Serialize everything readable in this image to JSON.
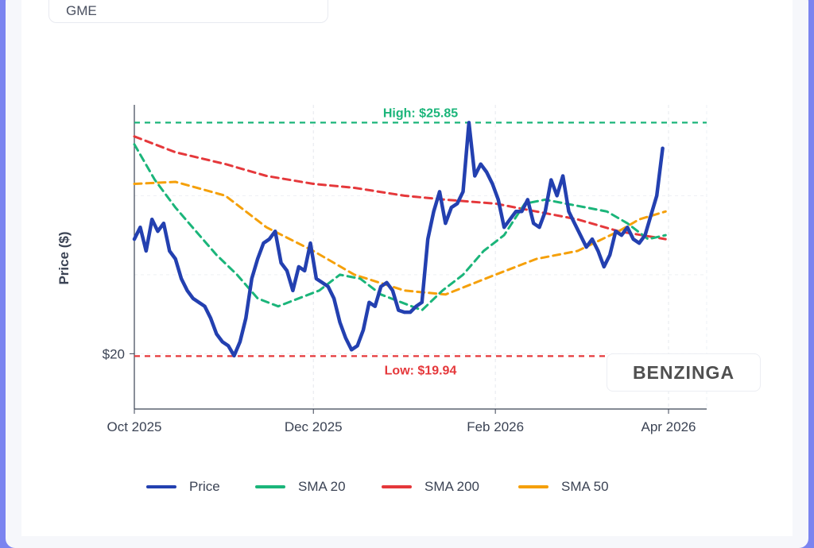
{
  "ticker": "GME",
  "logo_text": "BENZINGA",
  "colors": {
    "price": "#2340b0",
    "sma20": "#1bb57a",
    "sma200": "#e5383b",
    "sma50": "#f5a00a",
    "high": "#1bb57a",
    "low": "#e5383b"
  },
  "chart_data": {
    "type": "line",
    "title": "",
    "xlabel": "",
    "ylabel": "Price ($)",
    "x_ticks": [
      "Oct 2025",
      "Dec 2025",
      "Feb 2026",
      "Apr 2026"
    ],
    "y_ticks": [
      "$20"
    ],
    "ylim": [
      18.6,
      26.3
    ],
    "xlim": [
      "2025-10-01",
      "2026-04-14"
    ],
    "grid": true,
    "legend_position": "bottom",
    "high": {
      "label": "High: $25.85",
      "value": 25.85
    },
    "low": {
      "label": "Low: $19.94",
      "value": 19.94
    },
    "series": [
      {
        "name": "Price",
        "key": "price",
        "points": [
          [
            "2025-10-01",
            22.9
          ],
          [
            "2025-10-03",
            23.2
          ],
          [
            "2025-10-05",
            22.6
          ],
          [
            "2025-10-07",
            23.4
          ],
          [
            "2025-10-09",
            23.1
          ],
          [
            "2025-10-11",
            23.3
          ],
          [
            "2025-10-13",
            22.6
          ],
          [
            "2025-10-15",
            22.4
          ],
          [
            "2025-10-17",
            21.9
          ],
          [
            "2025-10-19",
            21.6
          ],
          [
            "2025-10-21",
            21.4
          ],
          [
            "2025-10-23",
            21.3
          ],
          [
            "2025-10-25",
            21.2
          ],
          [
            "2025-10-27",
            20.9
          ],
          [
            "2025-10-29",
            20.5
          ],
          [
            "2025-10-31",
            20.3
          ],
          [
            "2025-11-02",
            20.2
          ],
          [
            "2025-11-04",
            19.95
          ],
          [
            "2025-11-06",
            20.3
          ],
          [
            "2025-11-08",
            20.9
          ],
          [
            "2025-11-10",
            21.9
          ],
          [
            "2025-11-12",
            22.4
          ],
          [
            "2025-11-14",
            22.8
          ],
          [
            "2025-11-16",
            22.9
          ],
          [
            "2025-11-18",
            23.1
          ],
          [
            "2025-11-20",
            22.3
          ],
          [
            "2025-11-22",
            22.1
          ],
          [
            "2025-11-24",
            21.6
          ],
          [
            "2025-11-26",
            22.2
          ],
          [
            "2025-11-28",
            22.1
          ],
          [
            "2025-11-30",
            22.8
          ],
          [
            "2025-12-02",
            21.9
          ],
          [
            "2025-12-04",
            21.8
          ],
          [
            "2025-12-06",
            21.7
          ],
          [
            "2025-12-08",
            21.4
          ],
          [
            "2025-12-10",
            20.8
          ],
          [
            "2025-12-12",
            20.4
          ],
          [
            "2025-12-14",
            20.1
          ],
          [
            "2025-12-16",
            20.2
          ],
          [
            "2025-12-18",
            20.6
          ],
          [
            "2025-12-20",
            21.3
          ],
          [
            "2025-12-22",
            21.2
          ],
          [
            "2025-12-24",
            21.7
          ],
          [
            "2025-12-26",
            21.8
          ],
          [
            "2025-12-28",
            21.6
          ],
          [
            "2025-12-30",
            21.1
          ],
          [
            "2026-01-01",
            21.05
          ],
          [
            "2026-01-03",
            21.05
          ],
          [
            "2026-01-05",
            21.2
          ],
          [
            "2026-01-07",
            21.3
          ],
          [
            "2026-01-09",
            22.9
          ],
          [
            "2026-01-11",
            23.6
          ],
          [
            "2026-01-13",
            24.1
          ],
          [
            "2026-01-15",
            23.3
          ],
          [
            "2026-01-17",
            23.7
          ],
          [
            "2026-01-19",
            23.8
          ],
          [
            "2026-01-21",
            24.1
          ],
          [
            "2026-01-23",
            25.85
          ],
          [
            "2026-01-25",
            24.5
          ],
          [
            "2026-01-27",
            24.8
          ],
          [
            "2026-01-29",
            24.6
          ],
          [
            "2026-01-31",
            24.3
          ],
          [
            "2026-02-02",
            23.9
          ],
          [
            "2026-02-04",
            23.2
          ],
          [
            "2026-02-06",
            23.4
          ],
          [
            "2026-02-08",
            23.6
          ],
          [
            "2026-02-10",
            23.6
          ],
          [
            "2026-02-12",
            23.9
          ],
          [
            "2026-02-14",
            23.3
          ],
          [
            "2026-02-16",
            23.2
          ],
          [
            "2026-02-18",
            23.6
          ],
          [
            "2026-02-20",
            24.4
          ],
          [
            "2026-02-22",
            24.0
          ],
          [
            "2026-02-24",
            24.5
          ],
          [
            "2026-02-26",
            23.6
          ],
          [
            "2026-02-28",
            23.3
          ],
          [
            "2026-03-02",
            23.0
          ],
          [
            "2026-03-04",
            22.7
          ],
          [
            "2026-03-06",
            22.9
          ],
          [
            "2026-03-08",
            22.6
          ],
          [
            "2026-03-10",
            22.2
          ],
          [
            "2026-03-12",
            22.5
          ],
          [
            "2026-03-14",
            23.1
          ],
          [
            "2026-03-16",
            23.0
          ],
          [
            "2026-03-18",
            23.2
          ],
          [
            "2026-03-20",
            22.9
          ],
          [
            "2026-03-22",
            22.8
          ],
          [
            "2026-03-24",
            23.0
          ],
          [
            "2026-03-26",
            23.5
          ],
          [
            "2026-03-28",
            24.0
          ],
          [
            "2026-03-30",
            25.2
          ]
        ]
      },
      {
        "name": "SMA 20",
        "key": "sma20",
        "points": [
          [
            "2025-10-01",
            25.3
          ],
          [
            "2025-10-08",
            24.4
          ],
          [
            "2025-10-15",
            23.7
          ],
          [
            "2025-10-22",
            23.1
          ],
          [
            "2025-10-29",
            22.5
          ],
          [
            "2025-11-05",
            22.0
          ],
          [
            "2025-11-12",
            21.4
          ],
          [
            "2025-11-19",
            21.2
          ],
          [
            "2025-11-26",
            21.4
          ],
          [
            "2025-12-03",
            21.6
          ],
          [
            "2025-12-10",
            22.0
          ],
          [
            "2025-12-17",
            21.9
          ],
          [
            "2025-12-24",
            21.5
          ],
          [
            "2025-12-31",
            21.3
          ],
          [
            "2026-01-07",
            21.1
          ],
          [
            "2026-01-14",
            21.6
          ],
          [
            "2026-01-21",
            22.0
          ],
          [
            "2026-01-28",
            22.6
          ],
          [
            "2026-02-04",
            23.0
          ],
          [
            "2026-02-11",
            23.8
          ],
          [
            "2026-02-18",
            23.9
          ],
          [
            "2026-02-25",
            23.8
          ],
          [
            "2026-03-04",
            23.7
          ],
          [
            "2026-03-11",
            23.6
          ],
          [
            "2026-03-18",
            23.3
          ],
          [
            "2026-03-25",
            22.9
          ],
          [
            "2026-03-31",
            23.0
          ]
        ]
      },
      {
        "name": "SMA 200",
        "key": "sma200",
        "points": [
          [
            "2025-10-01",
            25.5
          ],
          [
            "2025-10-15",
            25.1
          ],
          [
            "2025-11-01",
            24.8
          ],
          [
            "2025-11-15",
            24.5
          ],
          [
            "2025-12-01",
            24.3
          ],
          [
            "2025-12-15",
            24.2
          ],
          [
            "2026-01-01",
            24.0
          ],
          [
            "2026-01-15",
            23.9
          ],
          [
            "2026-02-01",
            23.8
          ],
          [
            "2026-02-15",
            23.6
          ],
          [
            "2026-03-01",
            23.4
          ],
          [
            "2026-03-15",
            23.1
          ],
          [
            "2026-03-31",
            22.9
          ]
        ]
      },
      {
        "name": "SMA 50",
        "key": "sma50",
        "points": [
          [
            "2025-10-01",
            24.3
          ],
          [
            "2025-10-15",
            24.35
          ],
          [
            "2025-11-01",
            24.0
          ],
          [
            "2025-11-15",
            23.2
          ],
          [
            "2025-12-01",
            22.6
          ],
          [
            "2025-12-15",
            22.0
          ],
          [
            "2026-01-01",
            21.6
          ],
          [
            "2026-01-15",
            21.5
          ],
          [
            "2026-02-01",
            22.0
          ],
          [
            "2026-02-15",
            22.4
          ],
          [
            "2026-03-01",
            22.6
          ],
          [
            "2026-03-15",
            23.1
          ],
          [
            "2026-03-22",
            23.4
          ],
          [
            "2026-03-31",
            23.6
          ]
        ]
      }
    ]
  }
}
